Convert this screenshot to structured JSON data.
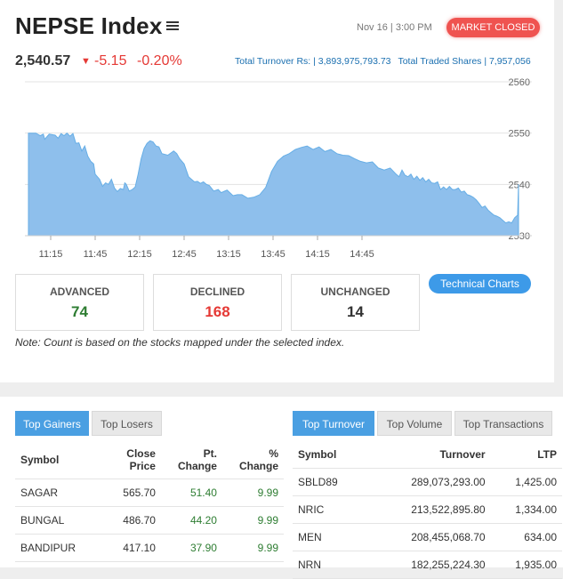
{
  "header": {
    "title": "NEPSE Index",
    "datetime": "Nov 16 | 3:00 PM",
    "market_status": "MARKET CLOSED",
    "index_value": "2,540.57",
    "change": "-5.15",
    "change_pct": "-0.20%",
    "turnover_label": "Total Turnover Rs: | 3,893,975,793.73",
    "traded_shares_label": "Total Traded Shares | 7,957,056"
  },
  "chart_data": {
    "type": "area",
    "x_ticks": [
      "11:15",
      "11:45",
      "12:15",
      "12:45",
      "13:15",
      "13:45",
      "14:15",
      "14:45"
    ],
    "y_ticks": [
      "2560",
      "2550",
      "2540",
      "2530"
    ],
    "ylim": [
      2530,
      2560
    ],
    "x_minutes": [
      0,
      5,
      8,
      10,
      11,
      14,
      18,
      20,
      22,
      24,
      26,
      28,
      30,
      32,
      34,
      36,
      38,
      40,
      42,
      44,
      45,
      48,
      50,
      52,
      54,
      56,
      58,
      60,
      62,
      64,
      65,
      66,
      68,
      70,
      72,
      74,
      76,
      78,
      80,
      82,
      84,
      86,
      88,
      90,
      94,
      98,
      100,
      102,
      105,
      108,
      110,
      112,
      114,
      116,
      118,
      120,
      122,
      125,
      128,
      130,
      134,
      138,
      141,
      144,
      148,
      152,
      156,
      160,
      164,
      168,
      172,
      176,
      180,
      184,
      188,
      192,
      196,
      200,
      204,
      208,
      212,
      216,
      220,
      224,
      228,
      232,
      236,
      240,
      244,
      248,
      250,
      252,
      254,
      256,
      258,
      260,
      262,
      264,
      266,
      268,
      270,
      272,
      274,
      276,
      278,
      280,
      282,
      284,
      286,
      288,
      290,
      292,
      294,
      296,
      298,
      300,
      302,
      304,
      306,
      308,
      310,
      312,
      314,
      316,
      318,
      320,
      322,
      324,
      326,
      328,
      330
    ],
    "y_values": [
      2550.0,
      2550.0,
      2549.5,
      2549.8,
      2548.8,
      2549.8,
      2549.6,
      2549.0,
      2549.9,
      2549.5,
      2550.0,
      2549.4,
      2549.9,
      2548.0,
      2548.1,
      2546.5,
      2547.5,
      2545.5,
      2544.5,
      2544.0,
      2542.0,
      2541.0,
      2539.6,
      2540.3,
      2540.0,
      2541.0,
      2539.3,
      2538.6,
      2539.2,
      2539.0,
      2540.3,
      2540.0,
      2538.7,
      2539.0,
      2539.5,
      2542.0,
      2545.0,
      2547.0,
      2548.0,
      2548.5,
      2548.3,
      2547.5,
      2547.3,
      2546.0,
      2545.7,
      2546.5,
      2546.0,
      2545.0,
      2544.0,
      2541.5,
      2541.0,
      2540.5,
      2540.6,
      2540.2,
      2540.5,
      2540.0,
      2539.8,
      2538.7,
      2539.0,
      2538.4,
      2538.9,
      2537.8,
      2538.0,
      2538.0,
      2537.3,
      2537.5,
      2538.0,
      2539.4,
      2542.5,
      2544.5,
      2545.5,
      2546.0,
      2546.8,
      2547.2,
      2547.5,
      2546.8,
      2547.3,
      2546.4,
      2546.8,
      2546.0,
      2545.7,
      2545.6,
      2545.0,
      2544.5,
      2544.2,
      2544.4,
      2543.2,
      2542.8,
      2543.2,
      2542.0,
      2541.5,
      2542.8,
      2541.8,
      2541.5,
      2542.0,
      2541.0,
      2541.6,
      2540.8,
      2541.3,
      2540.5,
      2541.0,
      2540.3,
      2540.2,
      2540.5,
      2539.0,
      2539.5,
      2539.0,
      2539.6,
      2539.0,
      2539.0,
      2539.3,
      2538.5,
      2538.7,
      2538.0,
      2537.8,
      2537.5,
      2537.0,
      2536.3,
      2535.5,
      2535.8,
      2535.0,
      2534.5,
      2534.0,
      2533.8,
      2533.5,
      2533.0,
      2532.5,
      2532.7,
      2532.5,
      2533.5,
      2534.0
    ],
    "close_spike": [
      2532.5,
      2540.0
    ],
    "area_color": "#8ebfec",
    "line_color": "#66aee6"
  },
  "breadth": {
    "advanced_label": "ADVANCED",
    "advanced": "74",
    "advanced_color": "#2e7d32",
    "declined_label": "DECLINED",
    "declined": "168",
    "declined_color": "#e53935",
    "unchanged_label": "UNCHANGED",
    "unchanged": "14",
    "unchanged_color": "#333333"
  },
  "technical_charts_label": "Technical Charts",
  "note": "Note: Count is based on the stocks mapped under the selected index.",
  "left_tabs": [
    "Top Gainers",
    "Top Losers"
  ],
  "gainers": {
    "headers": {
      "symbol": "Symbol",
      "close1": "Close",
      "close2": "Price",
      "pt1": "Pt.",
      "pt2": "Change",
      "pct1": "%",
      "pct2": "Change"
    },
    "rows": [
      {
        "symbol": "SAGAR",
        "close": "565.70",
        "pt": "51.40",
        "pct": "9.99"
      },
      {
        "symbol": "BUNGAL",
        "close": "486.70",
        "pt": "44.20",
        "pct": "9.99"
      },
      {
        "symbol": "BANDIPUR",
        "close": "417.10",
        "pt": "37.90",
        "pct": "9.99"
      }
    ]
  },
  "right_tabs": [
    "Top Turnover",
    "Top Volume",
    "Top Transactions"
  ],
  "turnover": {
    "headers": {
      "symbol": "Symbol",
      "turnover": "Turnover",
      "ltp": "LTP"
    },
    "rows": [
      {
        "symbol": "SBLD89",
        "turnover": "289,073,293.00",
        "ltp": "1,425.00"
      },
      {
        "symbol": "NRIC",
        "turnover": "213,522,895.80",
        "ltp": "1,334.00"
      },
      {
        "symbol": "MEN",
        "turnover": "208,455,068.70",
        "ltp": "634.00"
      },
      {
        "symbol": "NRN",
        "turnover": "182,255,224.30",
        "ltp": "1,935.00"
      }
    ]
  }
}
